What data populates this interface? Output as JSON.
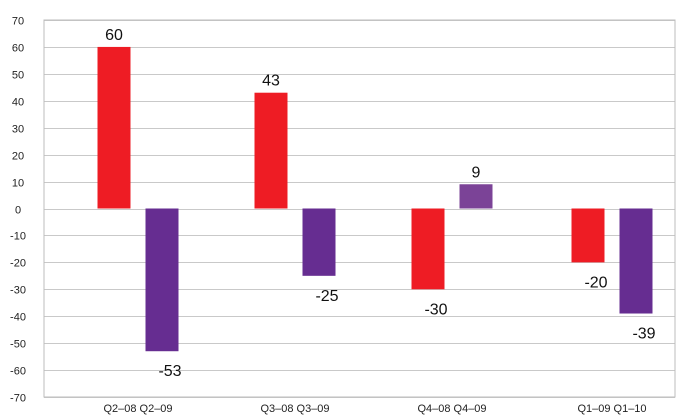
{
  "chart_data": {
    "type": "bar",
    "categories": [
      "Q2–08 Q2–09",
      "Q3–08 Q3–09",
      "Q4–08 Q4–09",
      "Q1–09 Q1–10"
    ],
    "series": [
      {
        "values": [
          60,
          43,
          -30,
          -20
        ],
        "color": "#ee1c24"
      },
      {
        "values": [
          -53,
          -25,
          9,
          -39
        ],
        "color": "#662d91",
        "colors": [
          "#662d91",
          "#662d91",
          "#7b4397",
          "#662d91"
        ]
      }
    ],
    "title": "",
    "xlabel": "",
    "ylabel": "",
    "ylim": [
      -70,
      70
    ],
    "yticks": [
      70,
      60,
      50,
      40,
      30,
      20,
      10,
      0,
      -10,
      -20,
      -30,
      -40,
      -50,
      -60,
      -70
    ],
    "grid": true,
    "legend": "none"
  }
}
